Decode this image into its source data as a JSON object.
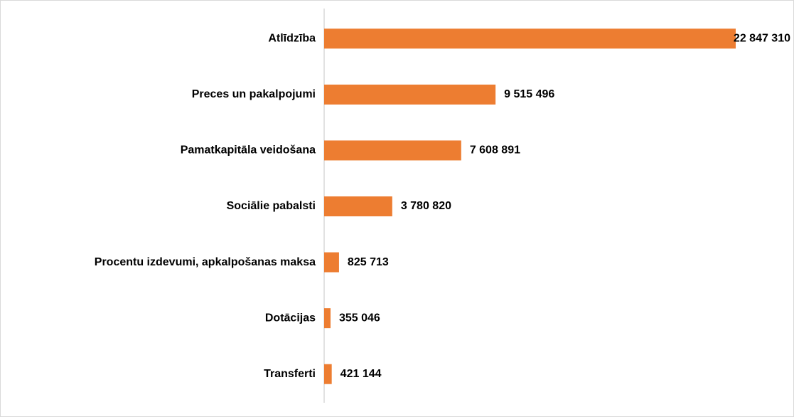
{
  "chart_data": {
    "type": "bar",
    "orientation": "horizontal",
    "categories": [
      "Atlīdzība",
      "Preces un pakalpojumi",
      "Pamatkapitāla veidošana",
      "Sociālie pabalsti",
      "Procentu izdevumi, apkalpošanas maksa",
      "Dotācijas",
      "Transferti"
    ],
    "values": [
      22847310,
      9515496,
      7608891,
      3780820,
      825713,
      355046,
      421144
    ],
    "value_labels": [
      "22 847 310",
      "9 515 496",
      "7 608 891",
      "3 780 820",
      "825 713",
      "355 046",
      "421 144"
    ],
    "color": "#ed7d31"
  }
}
